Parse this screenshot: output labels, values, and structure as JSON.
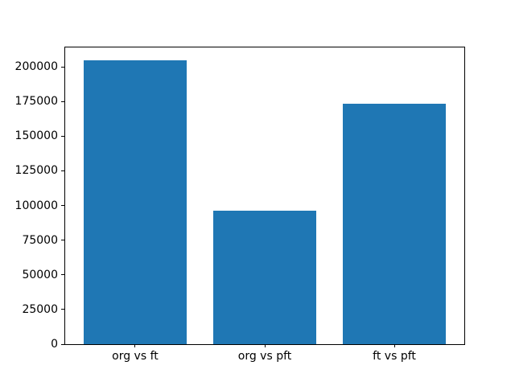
{
  "figure": {
    "background_color": "#ffffff",
    "bar_color": "#1f77b4",
    "spine_color": "#000000",
    "text_color": "#000000"
  },
  "chart_data": {
    "type": "bar",
    "title": "",
    "xlabel": "",
    "ylabel": "",
    "categories": [
      "org vs ft",
      "org vs pft",
      "ft vs pft"
    ],
    "values": [
      204500,
      96000,
      173500
    ],
    "ylim": [
      0,
      214000
    ],
    "yticks": [
      0,
      25000,
      50000,
      75000,
      100000,
      125000,
      150000,
      175000,
      200000
    ],
    "grid": false,
    "legend": null,
    "bar_width_fraction": 0.8
  }
}
